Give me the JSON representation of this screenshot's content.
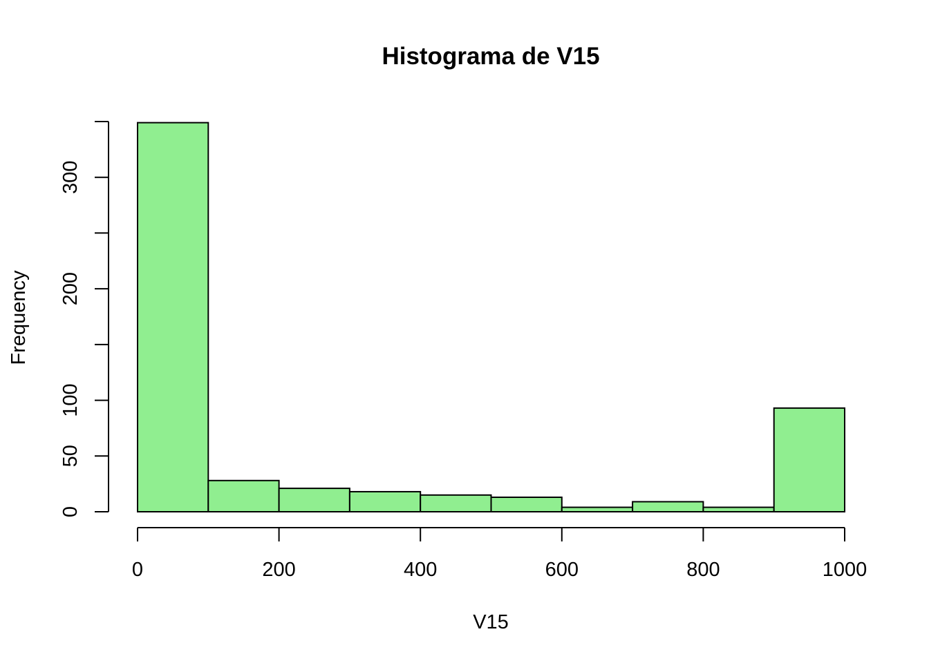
{
  "chart_data": {
    "type": "bar",
    "title": "Histograma de V15",
    "xlabel": "V15",
    "ylabel": "Frequency",
    "bin_width": 100,
    "bins": [
      {
        "start": 0,
        "end": 100,
        "count": 349
      },
      {
        "start": 100,
        "end": 200,
        "count": 28
      },
      {
        "start": 200,
        "end": 300,
        "count": 21
      },
      {
        "start": 300,
        "end": 400,
        "count": 18
      },
      {
        "start": 400,
        "end": 500,
        "count": 15
      },
      {
        "start": 500,
        "end": 600,
        "count": 13
      },
      {
        "start": 600,
        "end": 700,
        "count": 4
      },
      {
        "start": 700,
        "end": 800,
        "count": 9
      },
      {
        "start": 800,
        "end": 900,
        "count": 4
      },
      {
        "start": 900,
        "end": 1000,
        "count": 93
      }
    ],
    "xlim": [
      0,
      1000
    ],
    "ylim": [
      0,
      350
    ],
    "x_ticks": [
      0,
      200,
      400,
      600,
      800,
      1000
    ],
    "x_tick_labels": [
      "0",
      "200",
      "400",
      "600",
      "800",
      "1000"
    ],
    "y_ticks": [
      0,
      50,
      100,
      150,
      200,
      250,
      300,
      350
    ],
    "y_tick_labels": [
      "0",
      "50",
      "100",
      "",
      "200",
      "",
      "300",
      ""
    ],
    "grid": false,
    "legend": "none",
    "bar_fill": "#90ee90",
    "bar_stroke": "#000000"
  }
}
